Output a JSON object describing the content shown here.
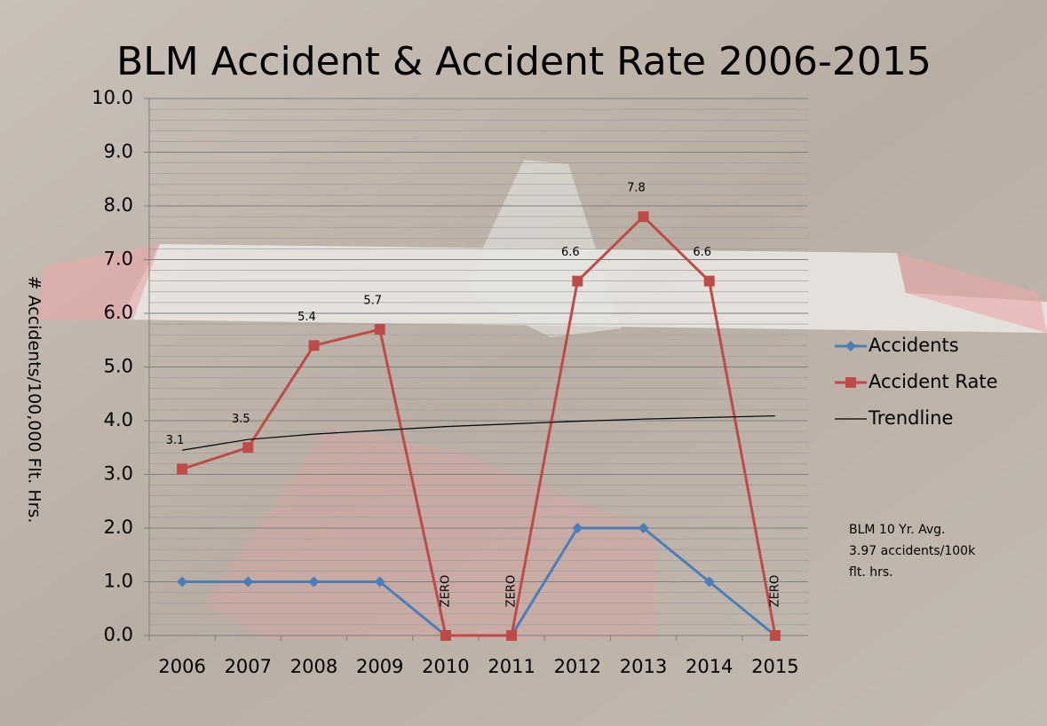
{
  "chart_data": {
    "type": "line",
    "title": "BLM Accident & Accident Rate  2006-2015",
    "y_label": "# Accidents/100,000  Flt. Hrs.",
    "categories": [
      "2006",
      "2007",
      "2008",
      "2009",
      "2010",
      "2011",
      "2012",
      "2013",
      "2014",
      "2015"
    ],
    "series": [
      {
        "name": "Accidents",
        "color": "#4a7ebb",
        "marker": "diamond",
        "values": [
          1,
          1,
          1,
          1,
          0,
          0,
          2,
          2,
          1,
          0
        ]
      },
      {
        "name": "Accident Rate",
        "color": "#be4b48",
        "marker": "square",
        "values": [
          3.1,
          3.5,
          5.4,
          5.7,
          0,
          0,
          6.6,
          7.8,
          6.6,
          0
        ],
        "value_labels": [
          "3.1",
          "3.5",
          "5.4",
          "5.7",
          "ZERO",
          "ZERO",
          "6.6",
          "7.8",
          "6.6",
          "ZERO"
        ]
      },
      {
        "name": "Trendline",
        "color": "#000000",
        "marker": "none",
        "values": [
          3.45,
          3.65,
          3.75,
          3.82,
          3.89,
          3.94,
          3.99,
          4.03,
          4.06,
          4.09
        ]
      }
    ],
    "ylim": [
      0,
      10
    ],
    "yticks": [
      {
        "value": 0,
        "label": "0.0"
      },
      {
        "value": 1,
        "label": "1.0"
      },
      {
        "value": 2,
        "label": "2.0"
      },
      {
        "value": 3,
        "label": "3.0"
      },
      {
        "value": 4,
        "label": "4.0"
      },
      {
        "value": 5,
        "label": "5.0"
      },
      {
        "value": 6,
        "label": "6.0"
      },
      {
        "value": 7,
        "label": "7.0"
      },
      {
        "value": 8,
        "label": "8.0"
      },
      {
        "value": 9,
        "label": "9.0"
      },
      {
        "value": 10,
        "label": "10.0"
      }
    ],
    "grid": true,
    "legend": "right",
    "annotation": [
      "BLM 10 Yr. Avg.",
      "3.97 accidents/100k",
      "flt. hrs."
    ]
  }
}
